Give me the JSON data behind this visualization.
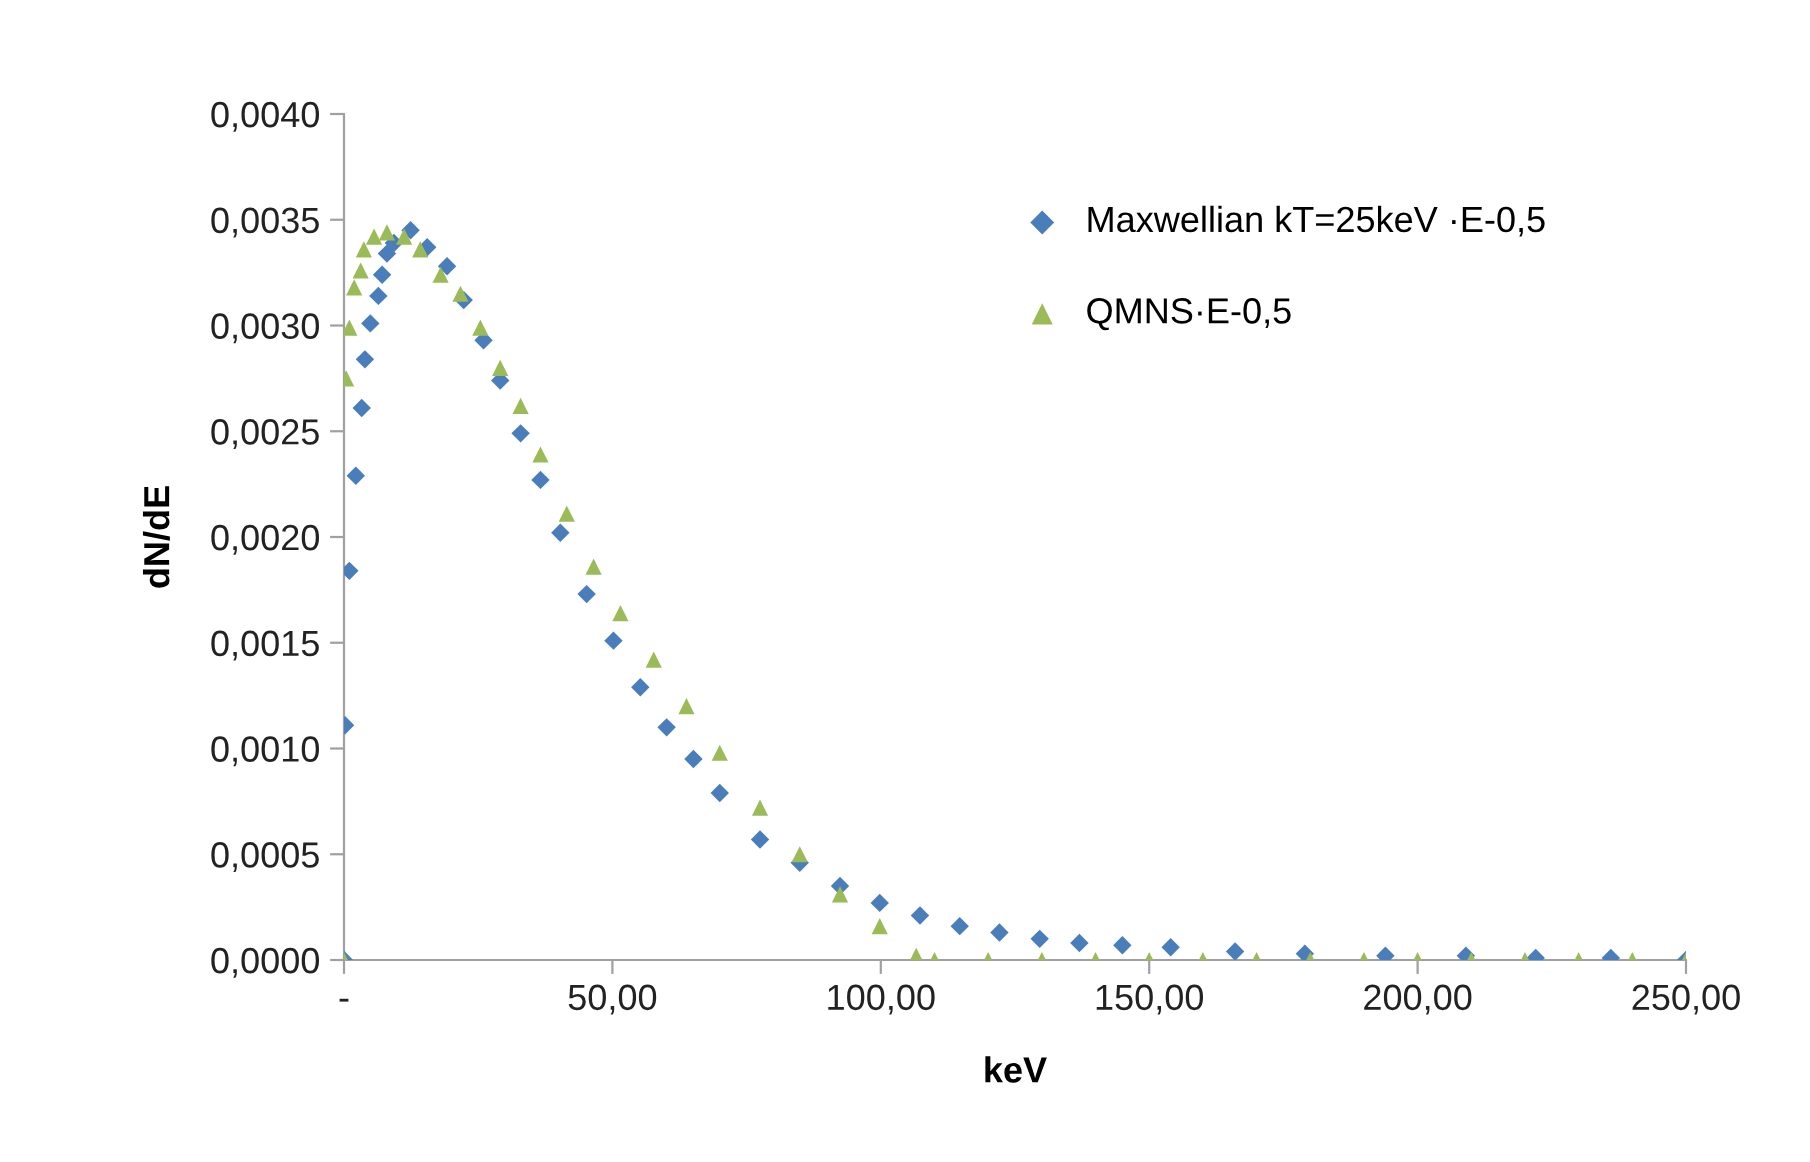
{
  "chart_data": {
    "type": "scatter",
    "xlabel": "keV",
    "ylabel": "dN/dE",
    "xlim": [
      0,
      250
    ],
    "ylim": [
      0,
      0.004
    ],
    "xticks": [
      {
        "value": 0,
        "label": "-"
      },
      {
        "value": 50,
        "label": "50,00"
      },
      {
        "value": 100,
        "label": "100,00"
      },
      {
        "value": 150,
        "label": "150,00"
      },
      {
        "value": 200,
        "label": "200,00"
      },
      {
        "value": 250,
        "label": "250,00"
      }
    ],
    "yticks": [
      {
        "value": 0,
        "label": "0,0000"
      },
      {
        "value": 0.0005,
        "label": "0,0005"
      },
      {
        "value": 0.001,
        "label": "0,0010"
      },
      {
        "value": 0.0015,
        "label": "0,0015"
      },
      {
        "value": 0.002,
        "label": "0,0020"
      },
      {
        "value": 0.0025,
        "label": "0,0025"
      },
      {
        "value": 0.003,
        "label": "0,0030"
      },
      {
        "value": 0.0035,
        "label": "0,0035"
      },
      {
        "value": 0.004,
        "label": "0,0040"
      }
    ],
    "grid": false,
    "legend": "top right",
    "series": [
      {
        "name": "Maxwellian kT=25keV ·E-0,5",
        "color": "#4a7ebb",
        "marker": "diamond",
        "x": [
          0,
          0.2,
          1.0,
          2.2,
          3.3,
          3.9,
          4.9,
          6.4,
          7.1,
          8.0,
          9.3,
          12.4,
          15.5,
          19.2,
          22.3,
          26.0,
          29.1,
          32.9,
          36.6,
          40.3,
          45.2,
          50.2,
          55.2,
          60.1,
          65.1,
          70.0,
          77.5,
          84.9,
          92.4,
          99.8,
          107.3,
          114.7,
          122.1,
          129.6,
          137,
          145,
          154,
          166,
          179,
          194,
          209,
          222,
          236,
          250
        ],
        "values": [
          0,
          0.00111,
          0.00184,
          0.00229,
          0.00261,
          0.00284,
          0.00301,
          0.00314,
          0.00324,
          0.00334,
          0.00339,
          0.00345,
          0.00337,
          0.00328,
          0.00312,
          0.00293,
          0.00274,
          0.00249,
          0.00227,
          0.00202,
          0.00173,
          0.00151,
          0.00129,
          0.0011,
          0.00095,
          0.00079,
          0.00057,
          0.00046,
          0.00035,
          0.00027,
          0.00021,
          0.00016,
          0.00013,
          0.0001,
          8e-05,
          7e-05,
          6e-05,
          4e-05,
          3e-05,
          2e-05,
          2e-05,
          1e-05,
          1e-05,
          0
        ]
      },
      {
        "name": "QMNS·E-0,5",
        "color": "#9bbb59",
        "marker": "triangle",
        "x": [
          0,
          0.4,
          1.0,
          1.9,
          3.1,
          3.7,
          5.6,
          8.0,
          11.2,
          14.2,
          18.0,
          21.7,
          25.4,
          29.1,
          32.9,
          36.6,
          41.5,
          46.5,
          51.5,
          57.7,
          63.8,
          70.0,
          77.5,
          84.9,
          92.4,
          99.8,
          106.6,
          110,
          120,
          130,
          140,
          150,
          160,
          170,
          180,
          190,
          200,
          210,
          220,
          230,
          240,
          250
        ],
        "values": [
          0,
          0.00275,
          0.00299,
          0.00318,
          0.00326,
          0.00336,
          0.00342,
          0.00344,
          0.00342,
          0.00336,
          0.00324,
          0.00315,
          0.00299,
          0.0028,
          0.00262,
          0.00239,
          0.00211,
          0.00186,
          0.00164,
          0.00142,
          0.0012,
          0.00098,
          0.00072,
          0.0005,
          0.00031,
          0.00016,
          2e-05,
          0,
          0,
          0,
          0,
          0,
          0,
          0,
          0,
          0,
          0,
          0,
          0,
          0,
          0,
          0
        ]
      }
    ]
  }
}
